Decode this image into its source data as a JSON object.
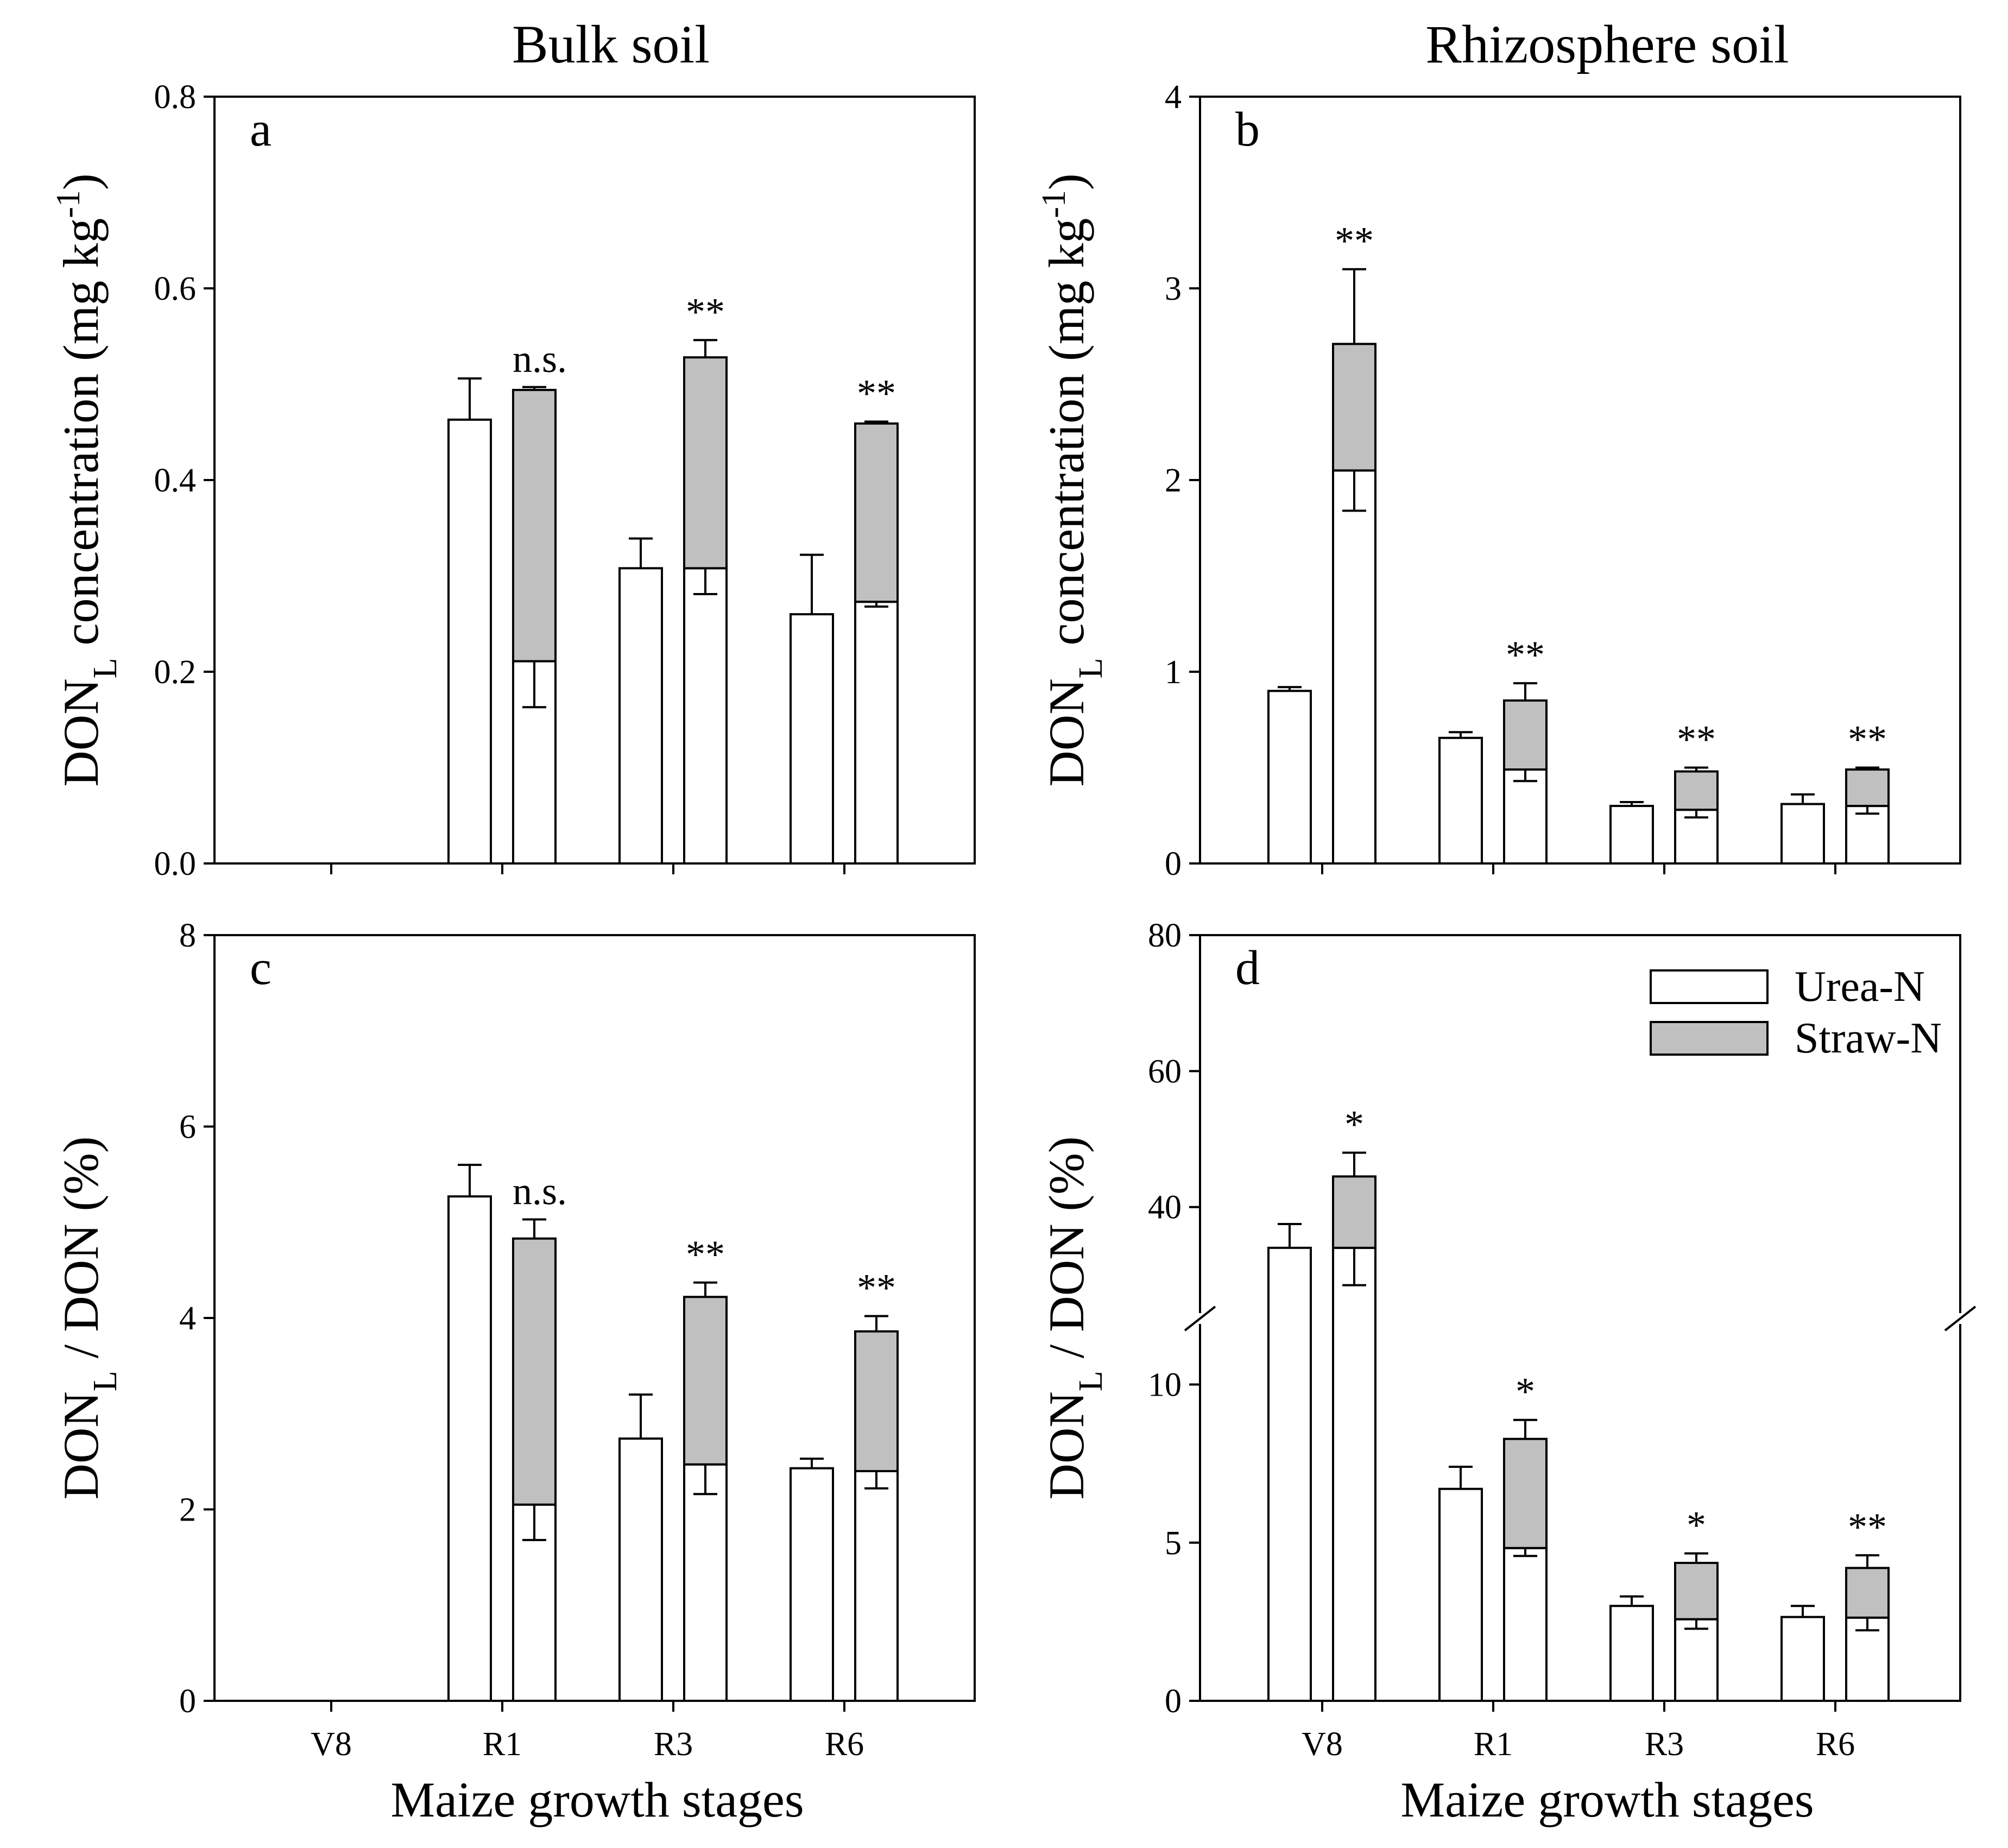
{
  "column_titles": [
    "Bulk soil",
    "Rhizosphere soil"
  ],
  "xlabel": "Maize growth stages",
  "legend": [
    {
      "label": "Urea-N",
      "color": "#ffffff"
    },
    {
      "label": "Straw-N",
      "color": "#c0c0c0"
    }
  ],
  "chart_data": [
    {
      "panel": "a",
      "type": "bar",
      "stacked": true,
      "title": "Bulk soil",
      "ylabel": {
        "main": "DON",
        "sub": "L",
        "rest": " concentration (mg kg",
        "sup": "-1",
        "end": ")"
      },
      "ylim": [
        0,
        0.8
      ],
      "yticks": [
        "0.0",
        "0.2",
        "0.4",
        "0.6",
        "0.8"
      ],
      "categories": [
        "V8",
        "R1",
        "R3",
        "R6"
      ],
      "urea_only": {
        "values": [
          null,
          0.463,
          0.308,
          0.26
        ],
        "err": [
          null,
          0.043,
          0.031,
          0.062
        ]
      },
      "urea_straw": {
        "urea": [
          null,
          0.211,
          0.308,
          0.273
        ],
        "urea_err": [
          null,
          0.048,
          0.027,
          0.005
        ],
        "straw": [
          null,
          0.283,
          0.22,
          0.186
        ],
        "total_err": [
          null,
          0.003,
          0.018,
          0.002
        ]
      },
      "significance": [
        null,
        "n.s.",
        "**",
        "**"
      ]
    },
    {
      "panel": "b",
      "type": "bar",
      "stacked": true,
      "title": "Rhizosphere soil",
      "ylabel": {
        "main": "DON",
        "sub": "L",
        "rest": " concentration (mg kg",
        "sup": "-1",
        "end": ")"
      },
      "ylim": [
        0,
        4
      ],
      "yticks": [
        "0",
        "1",
        "2",
        "3",
        "4"
      ],
      "categories": [
        "V8",
        "R1",
        "R3",
        "R6"
      ],
      "urea_only": {
        "values": [
          0.9,
          0.655,
          0.3,
          0.31
        ],
        "err": [
          0.02,
          0.03,
          0.02,
          0.05
        ]
      },
      "urea_straw": {
        "urea": [
          2.05,
          0.49,
          0.28,
          0.3
        ],
        "urea_err": [
          0.21,
          0.06,
          0.04,
          0.04
        ],
        "straw": [
          0.66,
          0.36,
          0.2,
          0.19
        ],
        "total_err": [
          0.39,
          0.09,
          0.02,
          0.01
        ]
      },
      "significance": [
        "**",
        "**",
        "**",
        "**"
      ]
    },
    {
      "panel": "c",
      "type": "bar",
      "stacked": true,
      "ylabel": {
        "main": "DON",
        "sub": "L",
        "rest": " / DON (%)"
      },
      "ylim": [
        0,
        8
      ],
      "yticks": [
        "0",
        "2",
        "4",
        "6",
        "8"
      ],
      "categories": [
        "V8",
        "R1",
        "R3",
        "R6"
      ],
      "urea_only": {
        "values": [
          null,
          5.27,
          2.74,
          2.43
        ],
        "err": [
          null,
          0.33,
          0.46,
          0.1
        ]
      },
      "urea_straw": {
        "urea": [
          null,
          2.05,
          2.47,
          2.4
        ],
        "urea_err": [
          null,
          0.37,
          0.31,
          0.18
        ],
        "straw": [
          null,
          2.78,
          1.75,
          1.46
        ],
        "total_err": [
          null,
          0.2,
          0.15,
          0.16
        ]
      },
      "significance": [
        null,
        "n.s.",
        "**",
        "**"
      ]
    },
    {
      "panel": "d",
      "type": "bar",
      "stacked": true,
      "broken_axis": {
        "lower": [
          0,
          12
        ],
        "upper": [
          24,
          80
        ]
      },
      "ylabel": {
        "main": "DON",
        "sub": "L",
        "rest": " / DON (%)"
      },
      "yticks_lower": [
        "0",
        "5",
        "10"
      ],
      "yticks_upper": [
        "40",
        "60",
        "80"
      ],
      "categories": [
        "V8",
        "R1",
        "R3",
        "R6"
      ],
      "urea_only": {
        "values": [
          34,
          6.7,
          3.0,
          2.65
        ],
        "err": [
          3.5,
          0.7,
          0.3,
          0.35
        ]
      },
      "urea_straw": {
        "urea": [
          34,
          4.83,
          2.58,
          2.63
        ],
        "urea_err": [
          5.5,
          0.25,
          0.3,
          0.4
        ],
        "straw": [
          10.5,
          3.45,
          1.78,
          1.57
        ],
        "total_err": [
          3.5,
          0.6,
          0.3,
          0.4
        ]
      },
      "significance": [
        "*",
        "*",
        "*",
        "**"
      ]
    }
  ]
}
